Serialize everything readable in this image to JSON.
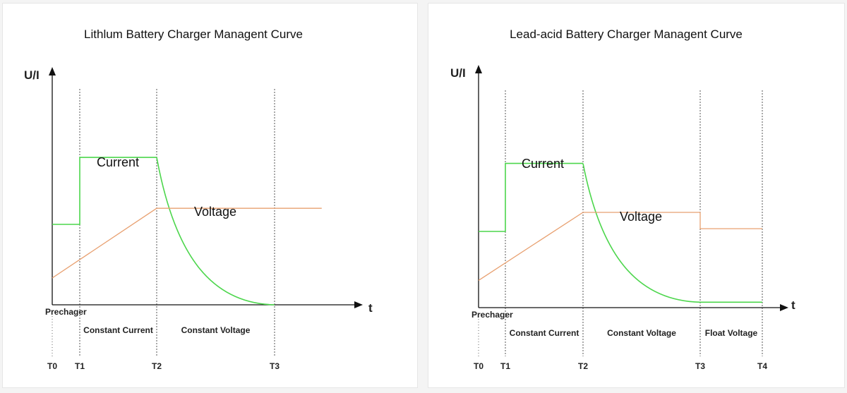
{
  "chart_data": [
    {
      "type": "line",
      "title": "Lithlum Battery Charger Managent Curve",
      "ylabel": "U/I",
      "xlabel": "t",
      "x_ticks": [
        "T0",
        "T1",
        "T2",
        "T3"
      ],
      "x_tick_positions": [
        0,
        1,
        3,
        6
      ],
      "xlim": [
        0,
        6
      ],
      "ylim": [
        0,
        10
      ],
      "phases": [
        {
          "label": "Prechager",
          "from": 0,
          "to": 1
        },
        {
          "label": "Constant Current",
          "from": 1,
          "to": 3
        },
        {
          "label": "Constant Voltage",
          "from": 3,
          "to": 6
        }
      ],
      "series": [
        {
          "name": "Current",
          "color": "#4cd64c",
          "shape": "step-then-decay",
          "points": [
            [
              0,
              3.0
            ],
            [
              1,
              3.0
            ],
            [
              1,
              5.5
            ],
            [
              3,
              5.5
            ]
          ],
          "decay": {
            "from": [
              3,
              5.5
            ],
            "to": [
              6,
              0
            ]
          }
        },
        {
          "name": "Voltage",
          "color": "#e8a070",
          "shape": "ramp-then-flat",
          "points": [
            [
              0,
              1.0
            ],
            [
              3,
              3.6
            ],
            [
              7.2,
              3.6
            ]
          ]
        }
      ]
    },
    {
      "type": "line",
      "title": "Lead-acid Battery Charger Managent Curve",
      "ylabel": "U/I",
      "xlabel": "t",
      "x_ticks": [
        "T0",
        "T1",
        "T2",
        "T3",
        "T4"
      ],
      "x_tick_positions": [
        0,
        1,
        4,
        8.5,
        11
      ],
      "xlim": [
        0,
        11
      ],
      "ylim": [
        0,
        10
      ],
      "phases": [
        {
          "label": "Prechager",
          "from": 0,
          "to": 1
        },
        {
          "label": "Constant Current",
          "from": 1,
          "to": 4
        },
        {
          "label": "Constant Voltage",
          "from": 4,
          "to": 8.5
        },
        {
          "label": "Float Voltage",
          "from": 8.5,
          "to": 11
        }
      ],
      "series": [
        {
          "name": "Current",
          "color": "#4cd64c",
          "shape": "step-then-decay-then-flat",
          "points": [
            [
              0,
              2.8
            ],
            [
              1,
              2.8
            ],
            [
              1,
              5.3
            ],
            [
              4,
              5.3
            ]
          ],
          "decay": {
            "from": [
              4,
              5.3
            ],
            "to": [
              8.5,
              0.2
            ]
          },
          "tail": [
            [
              8.5,
              0.2
            ],
            [
              11,
              0.2
            ]
          ]
        },
        {
          "name": "Voltage",
          "color": "#e8a070",
          "shape": "ramp-flat-drop-flat",
          "points": [
            [
              0,
              1.0
            ],
            [
              4,
              3.5
            ],
            [
              8.5,
              3.5
            ],
            [
              8.5,
              2.9
            ],
            [
              11,
              2.9
            ]
          ]
        }
      ]
    }
  ]
}
